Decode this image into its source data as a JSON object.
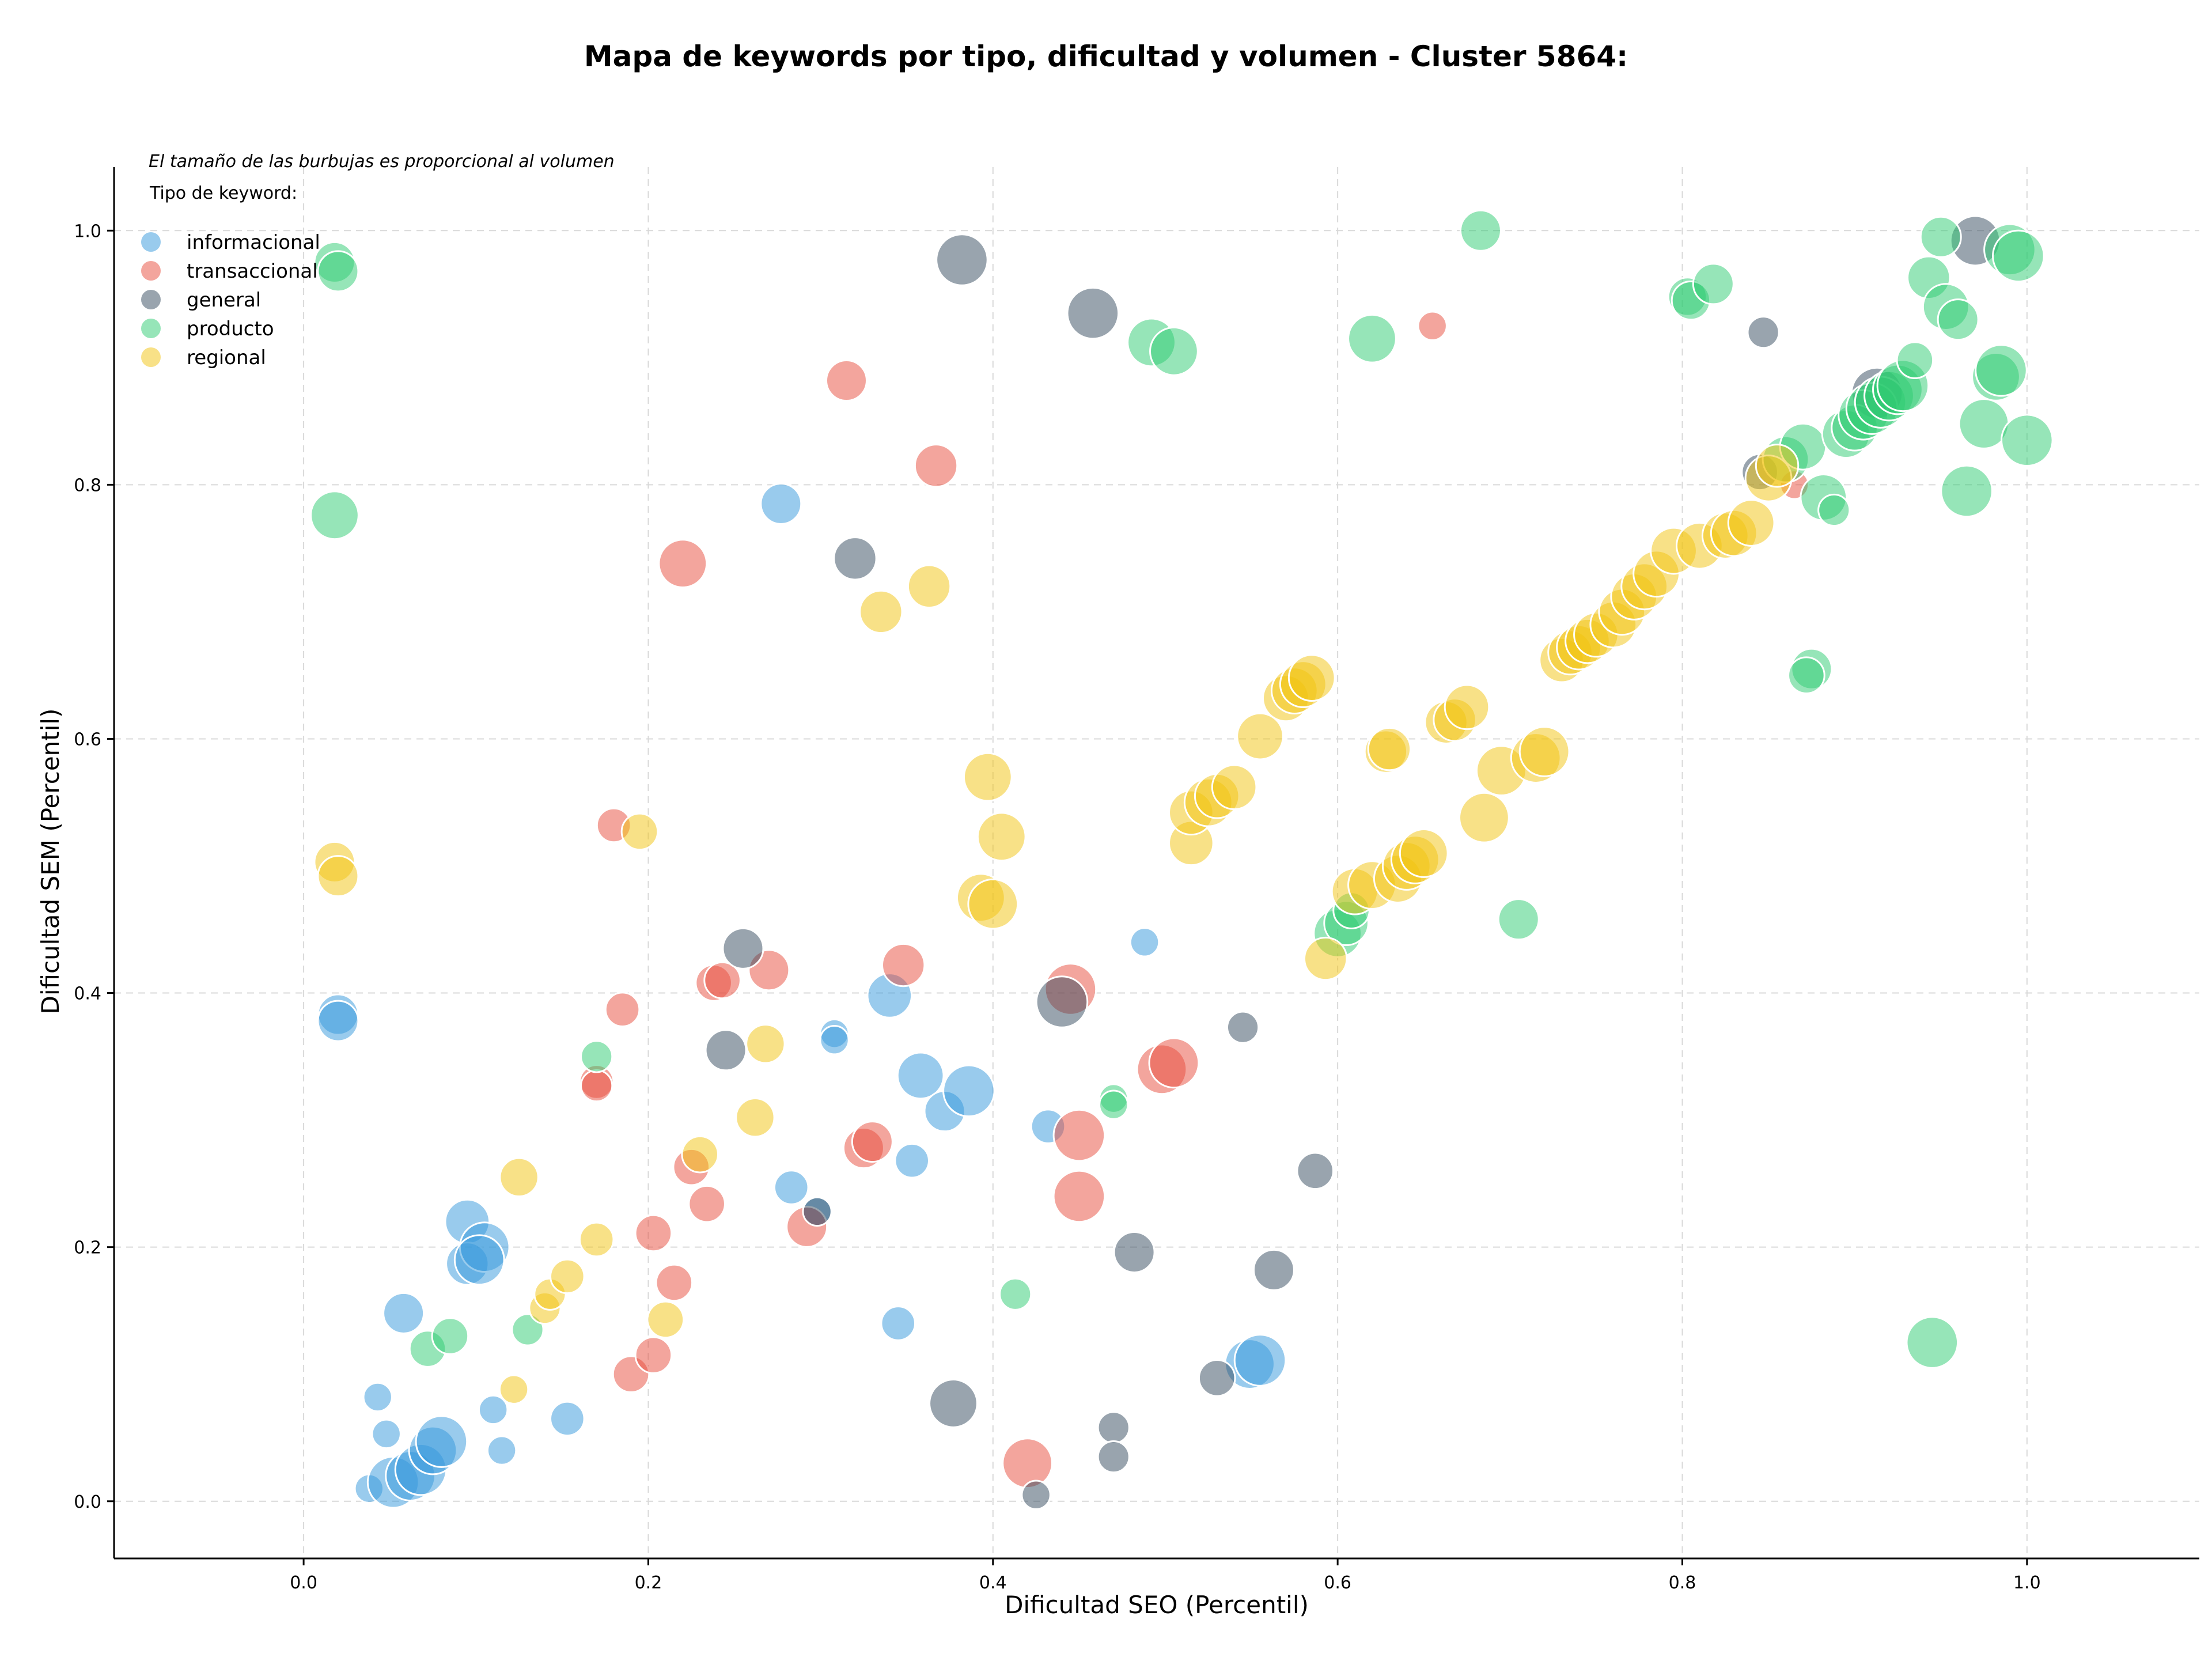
{
  "chart_data": {
    "type": "scatter",
    "title": "Mapa de keywords por tipo, dificultad y volumen - Cluster 5864:",
    "xlabel": "Dificultad SEO (Percentil)",
    "ylabel": "Dificultad SEM (Percentil)",
    "xlim": [
      -0.11,
      1.1
    ],
    "ylim": [
      -0.045,
      1.05
    ],
    "xticks": [
      0.0,
      0.2,
      0.4,
      0.6,
      0.8,
      1.0
    ],
    "xtick_labels": [
      "0.0",
      "0.2",
      "0.4",
      "0.6",
      "0.8",
      "1.0"
    ],
    "yticks": [
      0.0,
      0.2,
      0.4,
      0.6,
      0.8,
      1.0
    ],
    "ytick_labels": [
      "0.0",
      "0.2",
      "0.4",
      "0.6",
      "0.8",
      "1.0"
    ],
    "grid": true,
    "size_note": "El tamaño de las burbujas es proporcional al volumen",
    "legend_title": "Tipo de keyword:",
    "legend_position": "top-left",
    "series": [
      {
        "name": "informacional",
        "color": "#3498db",
        "points": [
          [
            0.02,
            0.383,
            1.0
          ],
          [
            0.02,
            0.378,
            1.0
          ],
          [
            0.043,
            0.082,
            0.5
          ],
          [
            0.048,
            0.053,
            0.5
          ],
          [
            0.038,
            0.01,
            0.5
          ],
          [
            0.052,
            0.015,
            1.6
          ],
          [
            0.062,
            0.02,
            1.5
          ],
          [
            0.068,
            0.025,
            1.6
          ],
          [
            0.075,
            0.04,
            1.4
          ],
          [
            0.08,
            0.047,
            1.6
          ],
          [
            0.058,
            0.148,
            1.0
          ],
          [
            0.095,
            0.22,
            1.2
          ],
          [
            0.095,
            0.187,
            1.1
          ],
          [
            0.105,
            0.2,
            1.5
          ],
          [
            0.102,
            0.19,
            1.5
          ],
          [
            0.11,
            0.072,
            0.5
          ],
          [
            0.115,
            0.04,
            0.5
          ],
          [
            0.153,
            0.065,
            0.7
          ],
          [
            0.277,
            0.785,
            1.0
          ],
          [
            0.283,
            0.247,
            0.7
          ],
          [
            0.298,
            0.228,
            0.5
          ],
          [
            0.308,
            0.368,
            0.5
          ],
          [
            0.308,
            0.363,
            0.5
          ],
          [
            0.34,
            0.398,
            1.2
          ],
          [
            0.345,
            0.14,
            0.7
          ],
          [
            0.353,
            0.268,
            0.7
          ],
          [
            0.358,
            0.335,
            1.3
          ],
          [
            0.372,
            0.307,
            1.0
          ],
          [
            0.386,
            0.323,
            1.6
          ],
          [
            0.432,
            0.295,
            0.7
          ],
          [
            0.488,
            0.44,
            0.5
          ],
          [
            0.549,
            0.108,
            1.5
          ],
          [
            0.555,
            0.111,
            1.6
          ]
        ]
      },
      {
        "name": "transaccional",
        "color": "#e74c3c",
        "points": [
          [
            0.18,
            0.532,
            0.7
          ],
          [
            0.185,
            0.387,
            0.7
          ],
          [
            0.17,
            0.33,
            0.7
          ],
          [
            0.17,
            0.327,
            0.6
          ],
          [
            0.22,
            0.738,
            1.4
          ],
          [
            0.19,
            0.1,
            0.8
          ],
          [
            0.203,
            0.211,
            0.8
          ],
          [
            0.203,
            0.115,
            0.8
          ],
          [
            0.215,
            0.172,
            0.8
          ],
          [
            0.225,
            0.263,
            0.8
          ],
          [
            0.234,
            0.234,
            0.8
          ],
          [
            0.238,
            0.408,
            0.8
          ],
          [
            0.243,
            0.41,
            0.8
          ],
          [
            0.27,
            0.418,
            1.0
          ],
          [
            0.292,
            0.216,
            1.0
          ],
          [
            0.315,
            0.882,
            1.0
          ],
          [
            0.325,
            0.278,
            1.0
          ],
          [
            0.33,
            0.283,
            1.0
          ],
          [
            0.348,
            0.422,
            1.1
          ],
          [
            0.367,
            0.815,
            1.1
          ],
          [
            0.42,
            0.03,
            1.5
          ],
          [
            0.445,
            0.403,
            1.6
          ],
          [
            0.45,
            0.288,
            1.6
          ],
          [
            0.45,
            0.24,
            1.6
          ],
          [
            0.498,
            0.34,
            1.5
          ],
          [
            0.505,
            0.345,
            1.5
          ],
          [
            0.655,
            0.925,
            0.5
          ],
          [
            0.865,
            0.8,
            0.5
          ]
        ]
      },
      {
        "name": "general",
        "color": "#34495e",
        "points": [
          [
            0.245,
            0.355,
            1.0
          ],
          [
            0.255,
            0.435,
            1.0
          ],
          [
            0.298,
            0.228,
            0.5
          ],
          [
            0.32,
            0.742,
            1.1
          ],
          [
            0.377,
            0.077,
            1.4
          ],
          [
            0.382,
            0.977,
            1.6
          ],
          [
            0.425,
            0.005,
            0.5
          ],
          [
            0.44,
            0.393,
            1.6
          ],
          [
            0.458,
            0.935,
            1.6
          ],
          [
            0.47,
            0.058,
            0.6
          ],
          [
            0.47,
            0.035,
            0.6
          ],
          [
            0.482,
            0.196,
            1.0
          ],
          [
            0.53,
            0.097,
            0.8
          ],
          [
            0.545,
            0.373,
            0.6
          ],
          [
            0.563,
            0.182,
            1.0
          ],
          [
            0.587,
            0.26,
            0.8
          ],
          [
            0.845,
            0.81,
            0.8
          ],
          [
            0.847,
            0.92,
            0.6
          ],
          [
            0.913,
            0.872,
            1.6
          ],
          [
            0.97,
            0.992,
            1.5
          ]
        ]
      },
      {
        "name": "producto",
        "color": "#2ecc71",
        "points": [
          [
            0.018,
            0.975,
            1.0
          ],
          [
            0.02,
            0.968,
            1.0
          ],
          [
            0.018,
            0.776,
            1.4
          ],
          [
            0.072,
            0.12,
            0.8
          ],
          [
            0.085,
            0.13,
            0.8
          ],
          [
            0.13,
            0.135,
            0.6
          ],
          [
            0.17,
            0.35,
            0.6
          ],
          [
            0.413,
            0.163,
            0.6
          ],
          [
            0.47,
            0.317,
            0.5
          ],
          [
            0.47,
            0.312,
            0.5
          ],
          [
            0.492,
            0.912,
            1.4
          ],
          [
            0.505,
            0.905,
            1.4
          ],
          [
            0.6,
            0.447,
            1.4
          ],
          [
            0.605,
            0.455,
            1.2
          ],
          [
            0.608,
            0.465,
            0.8
          ],
          [
            0.62,
            0.915,
            1.4
          ],
          [
            0.683,
            1.0,
            1.0
          ],
          [
            0.705,
            0.458,
            1.0
          ],
          [
            0.803,
            0.948,
            0.9
          ],
          [
            0.805,
            0.945,
            0.9
          ],
          [
            0.818,
            0.958,
            1.0
          ],
          [
            0.86,
            0.82,
            1.3
          ],
          [
            0.87,
            0.83,
            1.3
          ],
          [
            0.875,
            0.655,
            1.0
          ],
          [
            0.872,
            0.65,
            0.8
          ],
          [
            0.882,
            0.79,
            1.3
          ],
          [
            0.888,
            0.78,
            0.6
          ],
          [
            0.895,
            0.84,
            1.4
          ],
          [
            0.9,
            0.845,
            1.3
          ],
          [
            0.905,
            0.855,
            1.5
          ],
          [
            0.91,
            0.86,
            1.6
          ],
          [
            0.915,
            0.865,
            1.6
          ],
          [
            0.92,
            0.87,
            1.5
          ],
          [
            0.925,
            0.875,
            1.5
          ],
          [
            0.928,
            0.878,
            1.6
          ],
          [
            0.935,
            0.898,
            0.8
          ],
          [
            0.943,
            0.963,
            1.1
          ],
          [
            0.95,
            0.995,
            1.0
          ],
          [
            0.953,
            0.94,
            1.3
          ],
          [
            0.96,
            0.93,
            1.0
          ],
          [
            0.965,
            0.795,
            1.6
          ],
          [
            0.975,
            0.848,
            1.5
          ],
          [
            0.982,
            0.885,
            1.4
          ],
          [
            0.985,
            0.89,
            1.6
          ],
          [
            0.99,
            0.985,
            1.6
          ],
          [
            0.995,
            0.98,
            1.6
          ],
          [
            1.0,
            0.835,
            1.6
          ],
          [
            0.945,
            0.125,
            1.6
          ]
        ]
      },
      {
        "name": "regional",
        "color": "#f1c40f",
        "points": [
          [
            0.018,
            0.503,
            1.0
          ],
          [
            0.02,
            0.492,
            1.0
          ],
          [
            0.122,
            0.088,
            0.5
          ],
          [
            0.125,
            0.255,
            0.9
          ],
          [
            0.14,
            0.152,
            0.6
          ],
          [
            0.143,
            0.163,
            0.6
          ],
          [
            0.153,
            0.177,
            0.7
          ],
          [
            0.17,
            0.206,
            0.7
          ],
          [
            0.195,
            0.527,
            0.8
          ],
          [
            0.21,
            0.143,
            0.8
          ],
          [
            0.23,
            0.273,
            0.8
          ],
          [
            0.262,
            0.302,
            0.9
          ],
          [
            0.268,
            0.36,
            0.9
          ],
          [
            0.335,
            0.7,
            1.1
          ],
          [
            0.363,
            0.72,
            1.1
          ],
          [
            0.393,
            0.475,
            1.4
          ],
          [
            0.397,
            0.57,
            1.4
          ],
          [
            0.4,
            0.47,
            1.5
          ],
          [
            0.405,
            0.523,
            1.4
          ],
          [
            0.515,
            0.518,
            1.2
          ],
          [
            0.515,
            0.542,
            1.2
          ],
          [
            0.525,
            0.55,
            1.4
          ],
          [
            0.53,
            0.555,
            1.2
          ],
          [
            0.54,
            0.562,
            1.2
          ],
          [
            0.555,
            0.602,
            1.3
          ],
          [
            0.57,
            0.632,
            1.3
          ],
          [
            0.575,
            0.638,
            1.3
          ],
          [
            0.58,
            0.643,
            1.3
          ],
          [
            0.585,
            0.648,
            1.3
          ],
          [
            0.593,
            0.427,
            1.1
          ],
          [
            0.61,
            0.48,
            1.3
          ],
          [
            0.62,
            0.485,
            1.4
          ],
          [
            0.628,
            0.59,
            1.1
          ],
          [
            0.63,
            0.592,
            1.1
          ],
          [
            0.635,
            0.49,
            1.4
          ],
          [
            0.64,
            0.5,
            1.4
          ],
          [
            0.645,
            0.505,
            1.4
          ],
          [
            0.65,
            0.51,
            1.4
          ],
          [
            0.663,
            0.613,
            1.1
          ],
          [
            0.668,
            0.615,
            1.1
          ],
          [
            0.675,
            0.625,
            1.2
          ],
          [
            0.685,
            0.538,
            1.5
          ],
          [
            0.695,
            0.575,
            1.5
          ],
          [
            0.715,
            0.585,
            1.5
          ],
          [
            0.72,
            0.59,
            1.5
          ],
          [
            0.73,
            0.662,
            1.2
          ],
          [
            0.735,
            0.668,
            1.2
          ],
          [
            0.74,
            0.672,
            1.2
          ],
          [
            0.745,
            0.677,
            1.2
          ],
          [
            0.75,
            0.682,
            1.2
          ],
          [
            0.76,
            0.69,
            1.3
          ],
          [
            0.765,
            0.7,
            1.3
          ],
          [
            0.772,
            0.712,
            1.3
          ],
          [
            0.778,
            0.72,
            1.3
          ],
          [
            0.785,
            0.73,
            1.3
          ],
          [
            0.795,
            0.748,
            1.3
          ],
          [
            0.81,
            0.752,
            1.3
          ],
          [
            0.825,
            0.76,
            1.3
          ],
          [
            0.83,
            0.762,
            1.3
          ],
          [
            0.84,
            0.77,
            1.3
          ],
          [
            0.85,
            0.805,
            1.3
          ],
          [
            0.855,
            0.815,
            1.1
          ]
        ]
      }
    ]
  }
}
